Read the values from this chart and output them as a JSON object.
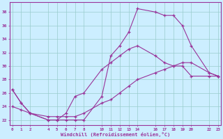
{
  "line1_x": [
    0,
    1,
    2,
    4,
    5,
    6,
    7,
    8,
    10,
    11,
    12,
    13,
    14,
    16,
    17,
    18,
    19,
    20,
    22,
    23
  ],
  "line1_y": [
    26.5,
    24.5,
    23.0,
    22.0,
    22.0,
    22.0,
    22.0,
    22.0,
    25.5,
    31.5,
    33.0,
    35.0,
    38.5,
    38.0,
    37.5,
    37.5,
    36.0,
    33.0,
    29.0,
    28.5
  ],
  "line2_x": [
    0,
    1,
    2,
    4,
    5,
    6,
    7,
    8,
    10,
    11,
    12,
    13,
    14,
    16,
    17,
    18,
    19,
    20,
    22,
    23
  ],
  "line2_y": [
    26.5,
    24.5,
    23.0,
    22.0,
    22.0,
    23.0,
    25.5,
    26.0,
    29.5,
    30.5,
    31.5,
    32.5,
    33.0,
    31.5,
    30.5,
    30.0,
    30.5,
    30.5,
    29.0,
    28.5
  ],
  "line3_x": [
    0,
    1,
    2,
    4,
    5,
    6,
    7,
    8,
    10,
    11,
    12,
    13,
    14,
    16,
    17,
    18,
    19,
    20,
    22,
    23
  ],
  "line3_y": [
    24.0,
    23.5,
    23.0,
    22.5,
    22.5,
    22.5,
    22.5,
    23.0,
    24.5,
    25.0,
    26.0,
    27.0,
    28.0,
    29.0,
    29.5,
    30.0,
    30.0,
    28.5,
    28.5,
    28.5
  ],
  "line_color": "#993399",
  "bg_color": "#cceeff",
  "grid_color": "#99cccc",
  "xlabel": "Windchill (Refroidissement éolien,°C)",
  "xticks": [
    0,
    1,
    2,
    4,
    5,
    6,
    7,
    8,
    10,
    11,
    12,
    13,
    14,
    16,
    17,
    18,
    19,
    20,
    22,
    23
  ],
  "yticks": [
    22,
    24,
    26,
    28,
    30,
    32,
    34,
    36,
    38
  ],
  "xlim": [
    -0.3,
    23.3
  ],
  "ylim": [
    21.2,
    39.5
  ]
}
